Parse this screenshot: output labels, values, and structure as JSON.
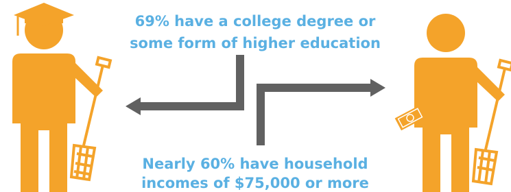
{
  "top_text": [
    "69% have a college degree or",
    "some form of higher education"
  ],
  "bottom_text": [
    "Nearly 60% have household",
    "incomes of $75,000 or more"
  ]
}
